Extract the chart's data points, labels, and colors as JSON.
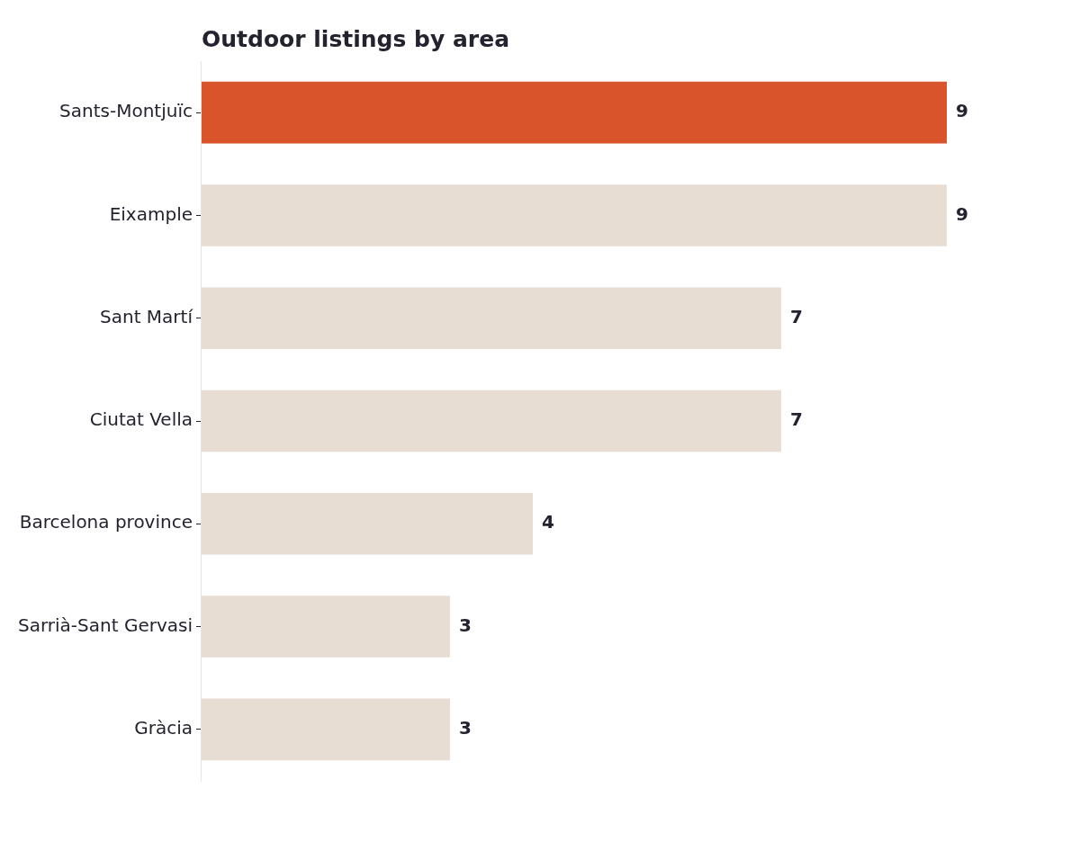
{
  "chart_data": {
    "type": "bar",
    "orientation": "horizontal",
    "title": "Outdoor listings by area",
    "categories": [
      "Sants-Montjuïc",
      "Eixample",
      "Sant Martí",
      "Ciutat Vella",
      "Barcelona province",
      "Sarrià-Sant Gervasi",
      "Gràcia"
    ],
    "values": [
      9,
      9,
      7,
      7,
      4,
      3,
      3
    ],
    "colors": [
      "#d9532b",
      "#e7ddd3",
      "#e7ddd3",
      "#e7ddd3",
      "#e7ddd3",
      "#e7ddd3",
      "#e7ddd3"
    ],
    "tick_labels": "y",
    "data_labels": true
  }
}
